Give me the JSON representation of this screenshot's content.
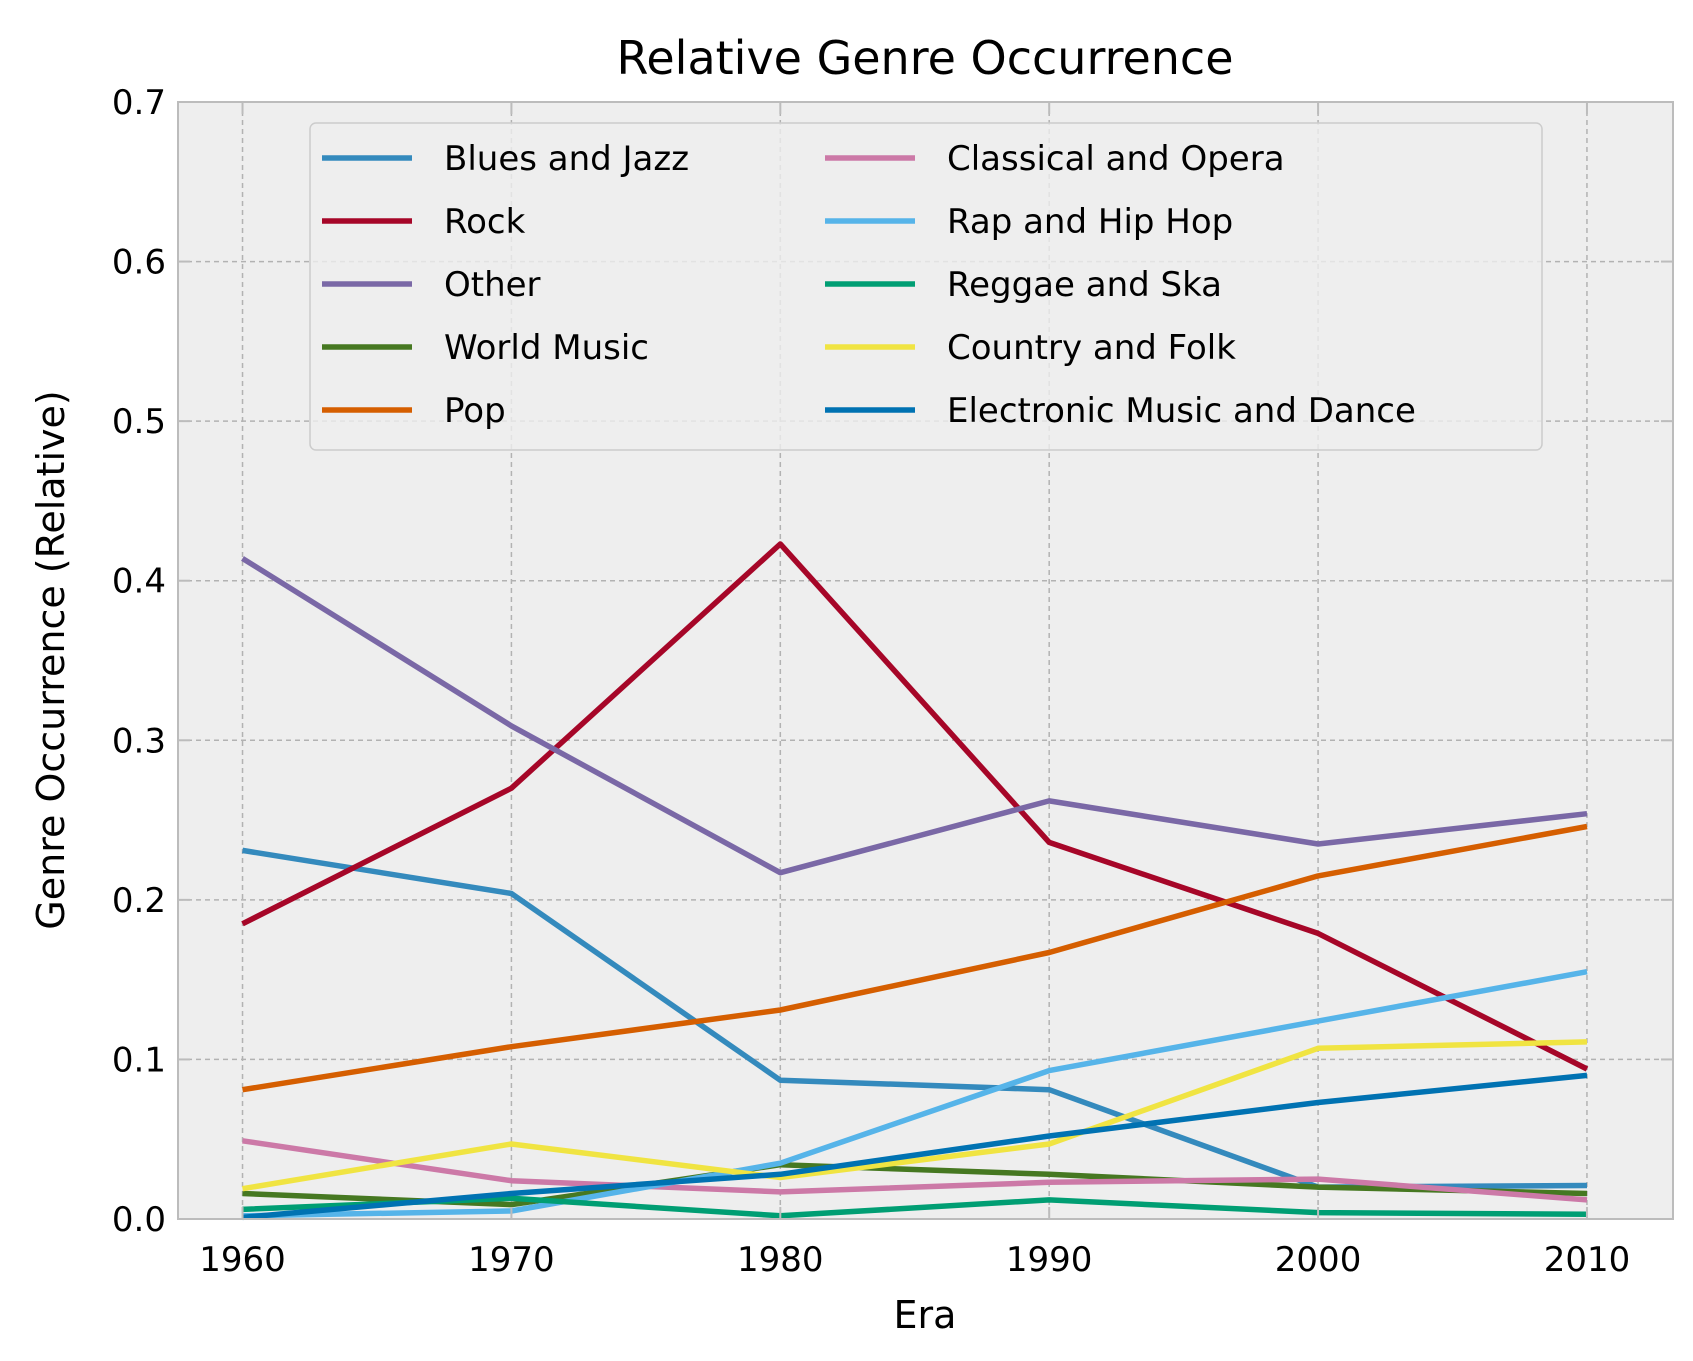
{
  "chart_data": {
    "type": "line",
    "title": "Relative Genre Occurrence",
    "xlabel": "Era",
    "ylabel": "Genre Occurrence (Relative)",
    "x": [
      1960,
      1970,
      1980,
      1990,
      2000,
      2010
    ],
    "xlim": [
      1957.6,
      2013.2
    ],
    "ylim": [
      0.0,
      0.7
    ],
    "xticks": [
      "1960",
      "1970",
      "1980",
      "1990",
      "2000",
      "2010"
    ],
    "yticks": [
      "0.0",
      "0.1",
      "0.2",
      "0.3",
      "0.4",
      "0.5",
      "0.6",
      "0.7"
    ],
    "grid": true,
    "legend": {
      "position": "top",
      "columns": 2
    },
    "series": [
      {
        "name": "Blues and Jazz",
        "color": "#348ABD",
        "values": [
          0.231,
          0.204,
          0.087,
          0.081,
          0.02,
          0.021
        ]
      },
      {
        "name": "Rock",
        "color": "#A60628",
        "values": [
          0.185,
          0.27,
          0.423,
          0.236,
          0.179,
          0.094
        ]
      },
      {
        "name": "Other",
        "color": "#7A68A6",
        "values": [
          0.414,
          0.309,
          0.217,
          0.262,
          0.235,
          0.254
        ]
      },
      {
        "name": "World Music",
        "color": "#467821",
        "values": [
          0.016,
          0.009,
          0.034,
          0.028,
          0.02,
          0.016
        ]
      },
      {
        "name": "Pop",
        "color": "#D55E00",
        "values": [
          0.081,
          0.108,
          0.131,
          0.167,
          0.215,
          0.246
        ]
      },
      {
        "name": "Classical and Opera",
        "color": "#CC79A7",
        "values": [
          0.049,
          0.024,
          0.017,
          0.023,
          0.025,
          0.012
        ]
      },
      {
        "name": "Rap and Hip Hop",
        "color": "#56B4E9",
        "values": [
          0.002,
          0.005,
          0.035,
          0.093,
          0.124,
          0.155
        ]
      },
      {
        "name": "Reggae and Ska",
        "color": "#009E73",
        "values": [
          0.006,
          0.013,
          0.002,
          0.012,
          0.004,
          0.003
        ]
      },
      {
        "name": "Country and Folk",
        "color": "#F0E442",
        "values": [
          0.019,
          0.047,
          0.026,
          0.047,
          0.107,
          0.111
        ]
      },
      {
        "name": "Electronic Music and Dance",
        "color": "#0072B2",
        "values": [
          0.001,
          0.016,
          0.028,
          0.052,
          0.073,
          0.09
        ]
      }
    ]
  }
}
